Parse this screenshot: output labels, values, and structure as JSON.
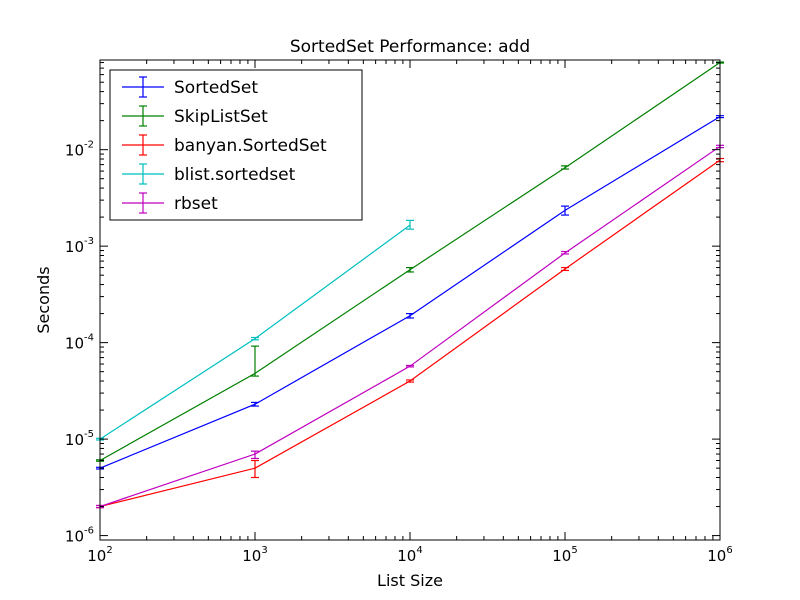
{
  "chart_data": {
    "type": "line",
    "title": "SortedSet Performance: add",
    "xlabel": "List Size",
    "ylabel": "Seconds",
    "xscale": "log",
    "yscale": "log",
    "xlim": [
      100,
      1000000
    ],
    "ylim": [
      9e-07,
      0.085
    ],
    "grid": false,
    "legend_position": "top-left",
    "x_ticks": [
      {
        "base": "10",
        "exp": "2",
        "value": 100
      },
      {
        "base": "10",
        "exp": "3",
        "value": 1000
      },
      {
        "base": "10",
        "exp": "4",
        "value": 10000
      },
      {
        "base": "10",
        "exp": "5",
        "value": 100000
      },
      {
        "base": "10",
        "exp": "6",
        "value": 1000000
      }
    ],
    "y_ticks": [
      {
        "base": "10",
        "exp": "-6",
        "value": 1e-06
      },
      {
        "base": "10",
        "exp": "-5",
        "value": 1e-05
      },
      {
        "base": "10",
        "exp": "-4",
        "value": 0.0001
      },
      {
        "base": "10",
        "exp": "-3",
        "value": 0.001
      },
      {
        "base": "10",
        "exp": "-2",
        "value": 0.01
      }
    ],
    "series": [
      {
        "name": "SortedSet",
        "color": "#0000ff",
        "points": [
          {
            "x": 100,
            "y": 5e-06,
            "err_lo": 4.9e-06,
            "err_hi": 5.1e-06
          },
          {
            "x": 1000,
            "y": 2.3e-05,
            "err_lo": 2.2e-05,
            "err_hi": 2.4e-05
          },
          {
            "x": 10000,
            "y": 0.00019,
            "err_lo": 0.00018,
            "err_hi": 0.0002
          },
          {
            "x": 100000,
            "y": 0.00235,
            "err_lo": 0.0021,
            "err_hi": 0.0026
          },
          {
            "x": 1000000,
            "y": 0.022,
            "err_lo": 0.0215,
            "err_hi": 0.0225
          }
        ]
      },
      {
        "name": "SkipListSet",
        "color": "#008000",
        "points": [
          {
            "x": 100,
            "y": 6e-06,
            "err_lo": 5.9e-06,
            "err_hi": 6.1e-06
          },
          {
            "x": 1000,
            "y": 4.8e-05,
            "err_lo": 4.5e-05,
            "err_hi": 9.2e-05
          },
          {
            "x": 10000,
            "y": 0.00057,
            "err_lo": 0.00054,
            "err_hi": 0.0006
          },
          {
            "x": 100000,
            "y": 0.0065,
            "err_lo": 0.0063,
            "err_hi": 0.0068
          },
          {
            "x": 1000000,
            "y": 0.08,
            "err_lo": 0.079,
            "err_hi": 0.081
          }
        ]
      },
      {
        "name": "banyan.SortedSet",
        "color": "#ff0000",
        "points": [
          {
            "x": 100,
            "y": 2e-06,
            "err_lo": 1.95e-06,
            "err_hi": 2.05e-06
          },
          {
            "x": 1000,
            "y": 5e-06,
            "err_lo": 4e-06,
            "err_hi": 6e-06
          },
          {
            "x": 10000,
            "y": 4e-05,
            "err_lo": 3.9e-05,
            "err_hi": 4.1e-05
          },
          {
            "x": 100000,
            "y": 0.00058,
            "err_lo": 0.00056,
            "err_hi": 0.0006
          },
          {
            "x": 1000000,
            "y": 0.0078,
            "err_lo": 0.0075,
            "err_hi": 0.0081
          }
        ]
      },
      {
        "name": "blist.sortedset",
        "color": "#00bfbf",
        "points": [
          {
            "x": 100,
            "y": 1e-05,
            "err_lo": 9.8e-06,
            "err_hi": 1.02e-05
          },
          {
            "x": 1000,
            "y": 0.00011,
            "err_lo": 0.000107,
            "err_hi": 0.000113
          },
          {
            "x": 10000,
            "y": 0.00165,
            "err_lo": 0.0015,
            "err_hi": 0.00185
          }
        ]
      },
      {
        "name": "rbset",
        "color": "#bf00bf",
        "points": [
          {
            "x": 100,
            "y": 2e-06,
            "err_lo": 1.95e-06,
            "err_hi": 2.05e-06
          },
          {
            "x": 1000,
            "y": 7e-06,
            "err_lo": 6.3e-06,
            "err_hi": 7.5e-06
          },
          {
            "x": 10000,
            "y": 5.7e-05,
            "err_lo": 5.6e-05,
            "err_hi": 5.8e-05
          },
          {
            "x": 100000,
            "y": 0.00085,
            "err_lo": 0.00083,
            "err_hi": 0.00088
          },
          {
            "x": 1000000,
            "y": 0.0108,
            "err_lo": 0.0105,
            "err_hi": 0.0111
          }
        ]
      }
    ]
  }
}
